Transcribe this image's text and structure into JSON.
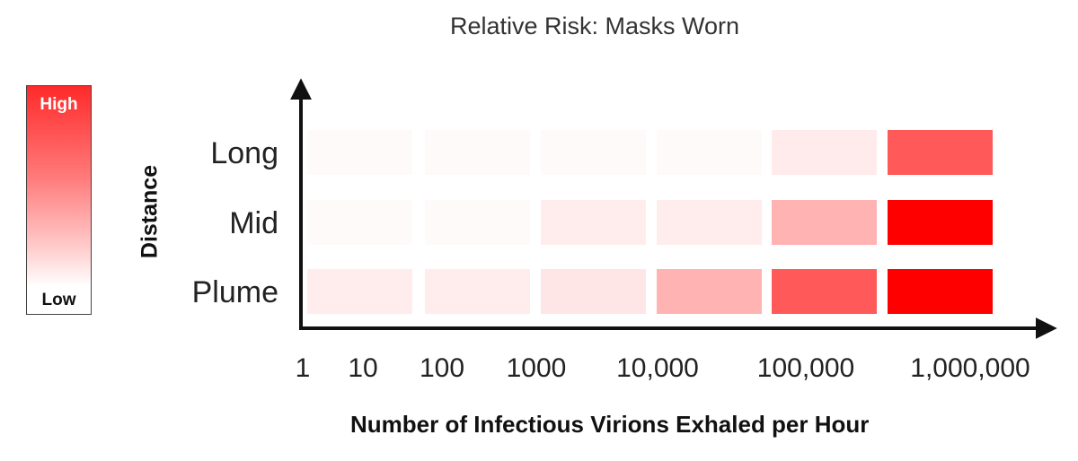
{
  "chart_data": {
    "type": "heatmap",
    "title": "Relative Risk: Masks Worn",
    "xlabel": "Number of Infectious Virions Exhaled per Hour",
    "ylabel": "Distance",
    "x_tick_labels": [
      "1",
      "10",
      "100",
      "1000",
      "10,000",
      "100,000",
      "1,000,000"
    ],
    "x_bins": [
      "1–10",
      "10–100",
      "100–1000",
      "1000–10,000",
      "10,000–100,000",
      "100,000–1,000,000"
    ],
    "y_categories": [
      "Long",
      "Mid",
      "Plume"
    ],
    "values": [
      [
        0.02,
        0.02,
        0.02,
        0.02,
        0.08,
        0.65
      ],
      [
        0.02,
        0.02,
        0.07,
        0.07,
        0.3,
        1.0
      ],
      [
        0.07,
        0.07,
        0.1,
        0.3,
        0.65,
        1.0
      ]
    ],
    "value_scale": "relative risk 0 (Low) to 1 (High)",
    "color_low": "#ffffff",
    "color_high": "#ff0000",
    "legend": {
      "high_label": "High",
      "low_label": "Low",
      "placement": "left"
    }
  }
}
